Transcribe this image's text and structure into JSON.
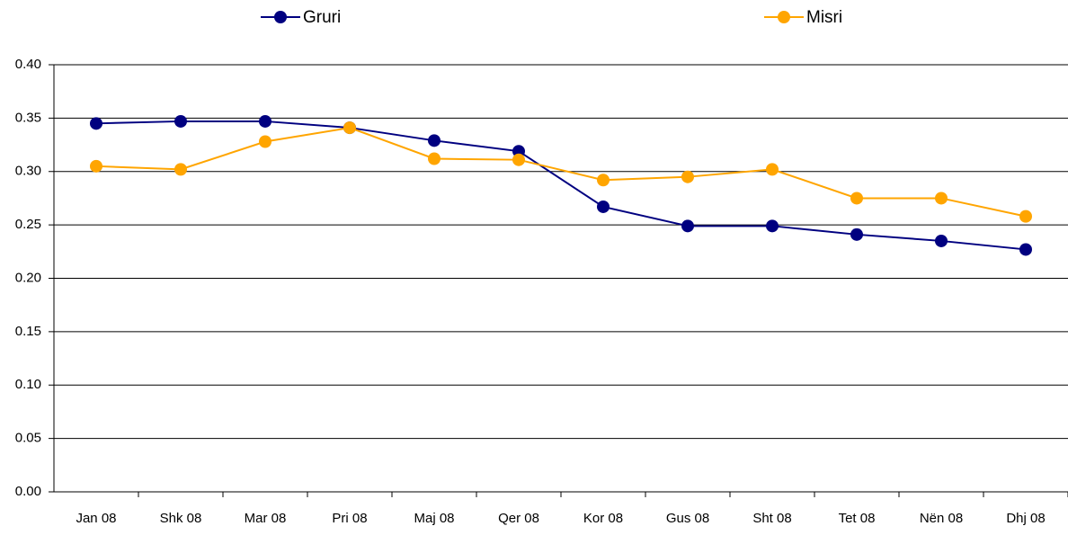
{
  "chart_data": {
    "type": "line",
    "categories": [
      "Jan 08",
      "Shk 08",
      "Mar 08",
      "Pri 08",
      "Maj 08",
      "Qer 08",
      "Kor 08",
      "Gus 08",
      "Sht 08",
      "Tet 08",
      "Nën 08",
      "Dhj 08"
    ],
    "series": [
      {
        "name": "Gruri",
        "color": "#000080",
        "values": [
          0.345,
          0.347,
          0.347,
          0.341,
          0.329,
          0.319,
          0.267,
          0.249,
          0.249,
          0.241,
          0.235,
          0.227
        ]
      },
      {
        "name": "Misri",
        "color": "#ffa500",
        "values": [
          0.305,
          0.302,
          0.328,
          0.341,
          0.312,
          0.311,
          0.292,
          0.295,
          0.302,
          0.275,
          0.275,
          0.258
        ]
      }
    ],
    "ylim": [
      0,
      0.4
    ],
    "yticks": [
      {
        "value": 0,
        "label": "0.00"
      },
      {
        "value": 0.05,
        "label": "0.05"
      },
      {
        "value": 0.1,
        "label": "0.10"
      },
      {
        "value": 0.15,
        "label": "0.15"
      },
      {
        "value": 0.2,
        "label": "0.20"
      },
      {
        "value": 0.25,
        "label": "0.25"
      },
      {
        "value": 0.3,
        "label": "0.30"
      },
      {
        "value": 0.35,
        "label": "0.35"
      },
      {
        "value": 0.4,
        "label": "0.40"
      }
    ],
    "grid": true,
    "legend": "top"
  }
}
